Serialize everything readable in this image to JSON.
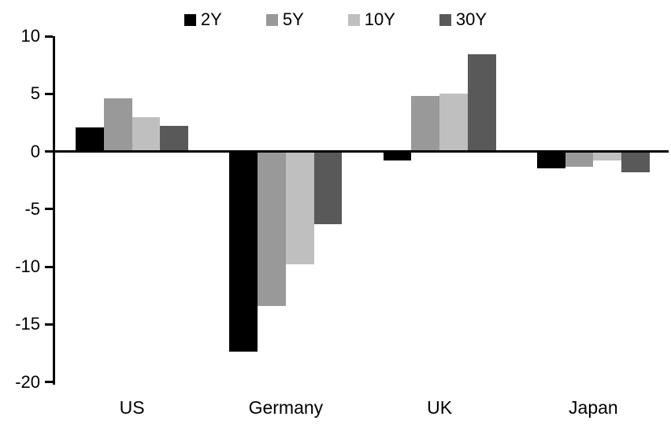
{
  "chart_data": {
    "type": "bar",
    "title": "",
    "xlabel": "",
    "ylabel": "",
    "categories": [
      "US",
      "Germany",
      "UK",
      "Japan"
    ],
    "series": [
      {
        "name": "2Y",
        "color": "#000000",
        "values": [
          2.1,
          -17.4,
          -0.8,
          -1.5
        ]
      },
      {
        "name": "5Y",
        "color": "#999999",
        "values": [
          4.6,
          -13.4,
          4.8,
          -1.3
        ]
      },
      {
        "name": "10Y",
        "color": "#bfbfbf",
        "values": [
          3.0,
          -9.8,
          5.0,
          -0.8
        ]
      },
      {
        "name": "30Y",
        "color": "#595959",
        "values": [
          2.2,
          -6.3,
          8.4,
          -1.8
        ]
      }
    ],
    "ylim": [
      -20,
      10
    ],
    "yticks": [
      10,
      5,
      0,
      -5,
      -10,
      -15,
      -20
    ],
    "ytick_labels": [
      "10",
      "5",
      "0",
      "-5",
      "-10",
      "-15",
      "-20"
    ],
    "grid": false,
    "legend_position": "top",
    "axis_color": "#000000",
    "background_color": "#ffffff"
  }
}
